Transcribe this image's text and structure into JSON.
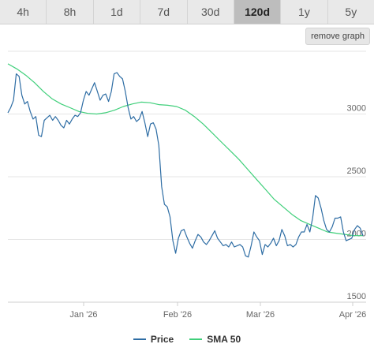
{
  "timeframes": {
    "items": [
      "4h",
      "8h",
      "1d",
      "7d",
      "30d",
      "120d",
      "1y",
      "5y"
    ],
    "active": "120d"
  },
  "toolbar": {
    "remove_graph_label": "remove graph"
  },
  "colors": {
    "price": "#2e6da4",
    "sma": "#3fcf7a",
    "grid": "#e6e6e6"
  },
  "chart_data": {
    "type": "line",
    "title": "",
    "xlabel": "",
    "ylabel": "",
    "x_ticks": [
      "Jan '26",
      "Feb '26",
      "Mar '26",
      "Apr '26"
    ],
    "y_ticks": [
      1500,
      2000,
      2500,
      3000
    ],
    "ylim": [
      1500,
      3500
    ],
    "grid": true,
    "legend": "bottom",
    "series": [
      {
        "name": "Price",
        "color": "#2e6da4",
        "values": [
          3010,
          3050,
          3110,
          3320,
          3300,
          3150,
          3080,
          3100,
          3020,
          2960,
          2980,
          2830,
          2820,
          2950,
          2970,
          2990,
          2950,
          2980,
          2950,
          2910,
          2890,
          2950,
          2920,
          2960,
          2990,
          2980,
          3010,
          3110,
          3180,
          3150,
          3200,
          3250,
          3180,
          3110,
          3150,
          3160,
          3100,
          3180,
          3320,
          3330,
          3300,
          3280,
          3180,
          3050,
          2960,
          2980,
          2940,
          2960,
          3020,
          2930,
          2820,
          2920,
          2930,
          2880,
          2750,
          2420,
          2280,
          2260,
          2180,
          1990,
          1890,
          2010,
          2070,
          2080,
          2020,
          1970,
          1930,
          1990,
          2040,
          2020,
          1980,
          1960,
          1990,
          2030,
          2070,
          2010,
          1980,
          1950,
          1960,
          1940,
          1980,
          1940,
          1950,
          1960,
          1940,
          1870,
          1860,
          1950,
          2060,
          2020,
          1990,
          1880,
          1960,
          1940,
          1970,
          2010,
          1950,
          1990,
          2080,
          2030,
          1950,
          1960,
          1940,
          1960,
          2020,
          2060,
          2060,
          2120,
          2060,
          2170,
          2350,
          2330,
          2250,
          2150,
          2080,
          2060,
          2100,
          2170,
          2170,
          2180,
          2060,
          1990,
          2000,
          2010,
          2080,
          2110,
          2090,
          2030
        ]
      },
      {
        "name": "SMA 50",
        "color": "#3fcf7a",
        "values": [
          3400,
          3360,
          3310,
          3250,
          3180,
          3120,
          3080,
          3050,
          3020,
          3005,
          3000,
          3010,
          3030,
          3060,
          3080,
          3095,
          3090,
          3075,
          3070,
          3060,
          3030,
          2980,
          2920,
          2850,
          2780,
          2710,
          2640,
          2560,
          2480,
          2400,
          2320,
          2260,
          2200,
          2150,
          2120,
          2090,
          2060,
          2050,
          2040,
          2030,
          2030
        ]
      }
    ]
  }
}
